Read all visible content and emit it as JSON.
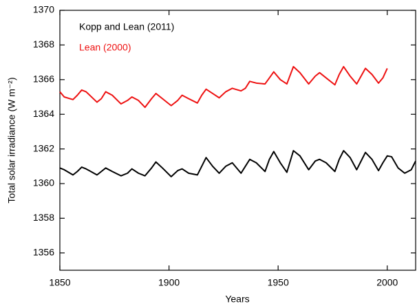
{
  "chart_data": {
    "type": "line",
    "x_label": "Years",
    "y_label": "Total solar irradiance (W m⁻²)",
    "xlim": [
      1850,
      2013
    ],
    "ylim": [
      1355,
      1370
    ],
    "xticks": [
      1850,
      1900,
      1950,
      2000
    ],
    "yticks": [
      1356,
      1358,
      1360,
      1362,
      1364,
      1366,
      1368,
      1370
    ],
    "x": [
      1850,
      1852,
      1856,
      1858,
      1860,
      1862,
      1867,
      1869,
      1871,
      1874,
      1878,
      1881,
      1883,
      1886,
      1889,
      1892,
      1894,
      1897,
      1901,
      1904,
      1906,
      1909,
      1913,
      1915,
      1917,
      1920,
      1923,
      1926,
      1929,
      1933,
      1935,
      1937,
      1940,
      1944,
      1946,
      1948,
      1951,
      1954,
      1957,
      1960,
      1964,
      1967,
      1969,
      1972,
      1976,
      1978,
      1980,
      1983,
      1986,
      1988,
      1990,
      1993,
      1996,
      1998,
      2000,
      2002,
      2005,
      2008,
      2011,
      2013
    ],
    "series": [
      {
        "name": "Kopp and Lean (2011)",
        "color": "#000000",
        "values": [
          1360.9,
          1360.8,
          1360.5,
          1360.7,
          1360.95,
          1360.85,
          1360.5,
          1360.7,
          1360.9,
          1360.7,
          1360.45,
          1360.6,
          1360.85,
          1360.6,
          1360.45,
          1360.9,
          1361.25,
          1360.9,
          1360.4,
          1360.75,
          1360.85,
          1360.6,
          1360.5,
          1361.0,
          1361.5,
          1361.0,
          1360.6,
          1361.0,
          1361.2,
          1360.6,
          1361.0,
          1361.4,
          1361.2,
          1360.7,
          1361.4,
          1361.85,
          1361.2,
          1360.65,
          1361.9,
          1361.6,
          1360.8,
          1361.3,
          1361.4,
          1361.2,
          1360.7,
          1361.4,
          1361.9,
          1361.5,
          1360.8,
          1361.3,
          1361.8,
          1361.4,
          1360.75,
          1361.2,
          1361.6,
          1361.55,
          1360.9,
          1360.6,
          1360.8,
          1361.3
        ]
      },
      {
        "name": "Lean (2000)",
        "color": "#ee1111",
        "values": [
          1365.3,
          1365.0,
          1364.85,
          1365.1,
          1365.4,
          1365.3,
          1364.7,
          1364.9,
          1365.3,
          1365.1,
          1364.6,
          1364.8,
          1365.0,
          1364.8,
          1364.4,
          1364.9,
          1365.2,
          1364.9,
          1364.5,
          1364.8,
          1365.1,
          1364.9,
          1364.65,
          1365.1,
          1365.45,
          1365.2,
          1364.95,
          1365.3,
          1365.5,
          1365.35,
          1365.5,
          1365.9,
          1365.8,
          1365.75,
          1366.1,
          1366.45,
          1366.0,
          1365.75,
          1366.75,
          1366.4,
          1365.75,
          1366.2,
          1366.4,
          1366.1,
          1365.7,
          1366.3,
          1366.75,
          1366.2,
          1365.75,
          1366.2,
          1366.65,
          1366.3,
          1365.8,
          1366.1,
          1366.65,
          null,
          null,
          null,
          null,
          null
        ]
      }
    ]
  }
}
